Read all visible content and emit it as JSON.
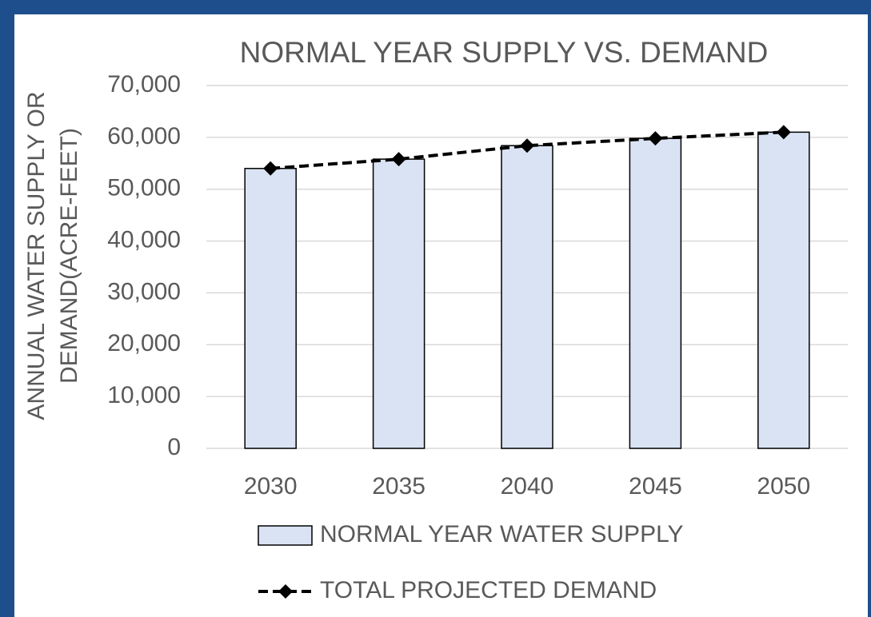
{
  "chart_data": {
    "type": "bar_line",
    "title": "NORMAL YEAR SUPPLY VS. DEMAND",
    "y_label": [
      "ANNUAL WATER SUPPLY OR",
      "DEMAND(ACRE-FEET)"
    ],
    "categories": [
      "2030",
      "2035",
      "2040",
      "2045",
      "2050"
    ],
    "series": [
      {
        "name": "NORMAL YEAR WATER SUPPLY",
        "type": "bar",
        "color": "#dae3f3",
        "values": [
          54000,
          55800,
          58400,
          59800,
          61000
        ]
      },
      {
        "name": "TOTAL PROJECTED DEMAND",
        "type": "line",
        "color": "#000000",
        "values": [
          54000,
          55800,
          58400,
          59800,
          61000
        ]
      }
    ],
    "ylim": [
      0,
      70000
    ],
    "yticks": [
      0,
      {
        "value": 10000,
        "label": "10,000"
      },
      {
        "value": 20000,
        "label": "20,000"
      },
      {
        "value": 30000,
        "label": "30,000"
      },
      {
        "value": 40000,
        "label": "40,000"
      },
      {
        "value": 50000,
        "label": "50,000"
      },
      {
        "value": 60000,
        "label": "60,000"
      },
      {
        "value": 70000,
        "label": "70,000"
      }
    ],
    "grid": true,
    "legend": "bottom"
  }
}
